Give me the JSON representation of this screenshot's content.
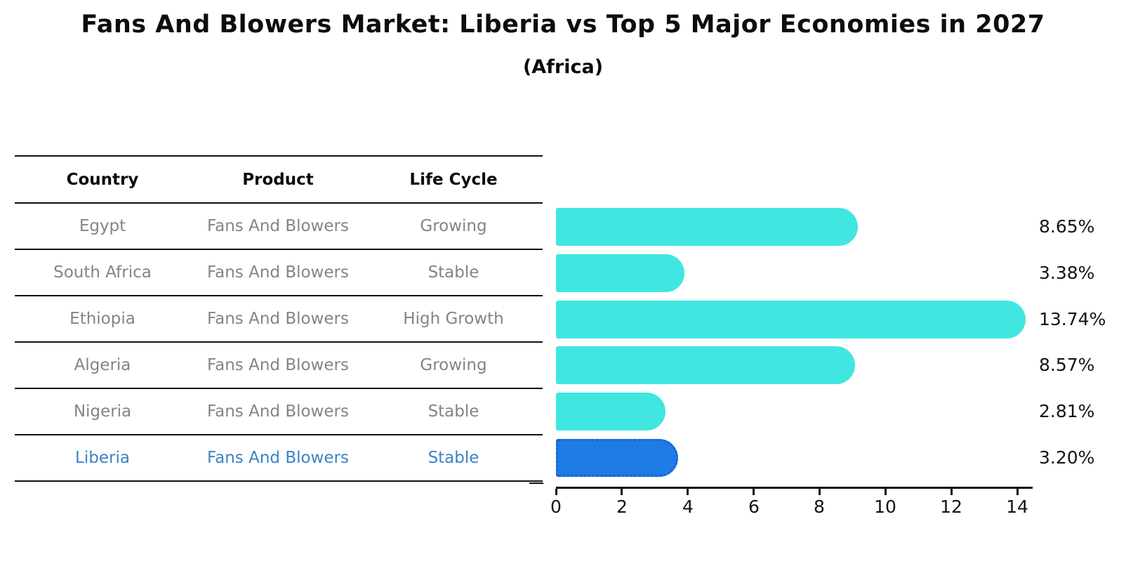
{
  "title": "Fans And Blowers Market: Liberia vs Top 5 Major Economies in 2027",
  "subtitle": "(Africa)",
  "table": {
    "columns": [
      "Country",
      "Product",
      "Life Cycle"
    ],
    "rows": [
      {
        "country": "Egypt",
        "product": "Fans And Blowers",
        "life_cycle": "Growing",
        "highlight": false
      },
      {
        "country": "South Africa",
        "product": "Fans And Blowers",
        "life_cycle": "Stable",
        "highlight": false
      },
      {
        "country": "Ethiopia",
        "product": "Fans And Blowers",
        "life_cycle": "High Growth",
        "highlight": false
      },
      {
        "country": "Algeria",
        "product": "Fans And Blowers",
        "life_cycle": "Growing",
        "highlight": false
      },
      {
        "country": "Nigeria",
        "product": "Fans And Blowers",
        "life_cycle": "Stable",
        "highlight": false
      },
      {
        "country": "Liberia",
        "product": "Fans And Blowers",
        "life_cycle": "Stable",
        "highlight": true
      }
    ]
  },
  "chart_data": {
    "type": "bar",
    "orientation": "horizontal",
    "title": "Fans And Blowers Market: Liberia vs Top 5 Major Economies in 2027",
    "subtitle": "(Africa)",
    "categories": [
      "Egypt",
      "South Africa",
      "Ethiopia",
      "Algeria",
      "Nigeria",
      "Liberia"
    ],
    "values": [
      8.65,
      3.38,
      13.74,
      8.57,
      2.81,
      3.2
    ],
    "value_labels": [
      "8.65%",
      "3.38%",
      "13.74%",
      "8.57%",
      "2.81%",
      "3.20%"
    ],
    "xlabel": "",
    "ylabel": "",
    "xlim": [
      0,
      14.45
    ],
    "xticks": [
      0,
      2,
      4,
      6,
      8,
      10,
      12,
      14
    ],
    "grid": false,
    "legend": false,
    "bar_color": "#41E6E0",
    "highlight_bar_color": "#1F7BE5",
    "highlight_index": 5,
    "highlight_text_color": "#3B82C6",
    "table_text_color": "#848484"
  }
}
